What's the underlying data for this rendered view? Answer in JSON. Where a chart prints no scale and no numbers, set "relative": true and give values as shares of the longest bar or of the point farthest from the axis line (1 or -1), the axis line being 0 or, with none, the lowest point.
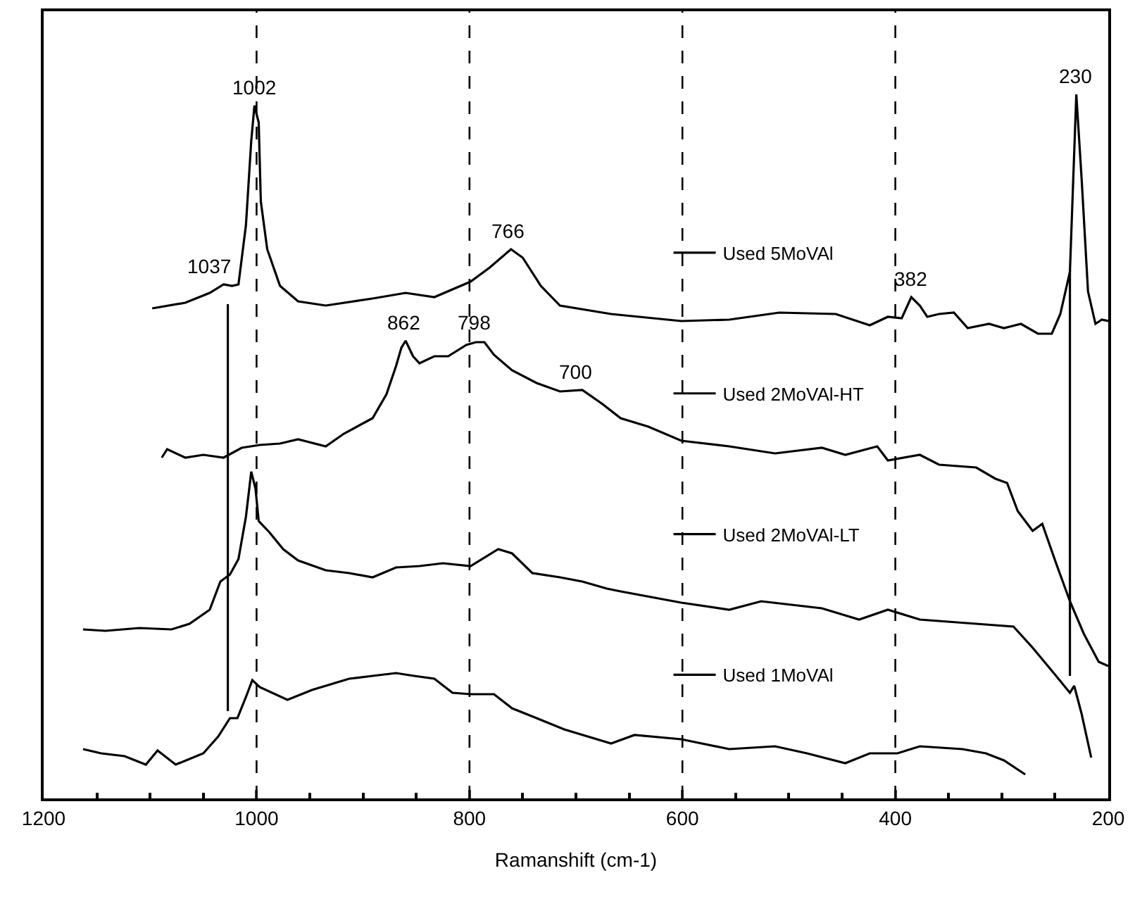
{
  "chart_data": {
    "type": "line",
    "relative": true,
    "xlabel": "Ramanshift (cm-1)",
    "xlim": [
      1200,
      200
    ],
    "xticks": [
      1200,
      1000,
      800,
      600,
      400,
      200
    ],
    "grid": false,
    "legend": "right",
    "marker": "none",
    "line_style": "solid",
    "series": [
      {
        "name": "Used 5MoVAl",
        "color": "#000000",
        "x": [
          1098,
          1067,
          1044,
          1031,
          1023,
          1017,
          1010,
          1005,
          1002,
          998,
          996,
          990,
          978,
          961,
          935,
          891,
          860,
          833,
          799,
          781,
          761,
          750,
          733,
          715,
          667,
          601,
          556,
          509,
          456,
          424,
          407,
          394,
          385,
          377,
          370,
          359,
          345,
          332,
          312,
          298,
          282,
          266,
          253,
          245,
          236,
          230,
          225,
          219,
          212,
          206,
          200
        ],
        "values": [
          0.696,
          0.704,
          0.718,
          0.73,
          0.728,
          0.73,
          0.814,
          0.934,
          0.984,
          0.96,
          0.848,
          0.78,
          0.728,
          0.706,
          0.7,
          0.71,
          0.718,
          0.712,
          0.734,
          0.754,
          0.78,
          0.768,
          0.728,
          0.7,
          0.688,
          0.678,
          0.68,
          0.69,
          0.688,
          0.672,
          0.684,
          0.682,
          0.712,
          0.7,
          0.684,
          0.688,
          0.69,
          0.668,
          0.674,
          0.668,
          0.674,
          0.66,
          0.66,
          0.688,
          0.748,
          1.0,
          0.88,
          0.72,
          0.674,
          0.68,
          0.678
        ]
      },
      {
        "name": "Used 2MoVAl-HT",
        "color": "#000000",
        "x": [
          1089,
          1084,
          1067,
          1050,
          1031,
          1014,
          997,
          978,
          961,
          935,
          918,
          891,
          878,
          869,
          864,
          860,
          853,
          847,
          833,
          820,
          803,
          794,
          786,
          777,
          760,
          737,
          715,
          694,
          675,
          658,
          632,
          601,
          556,
          513,
          469,
          447,
          417,
          407,
          377,
          359,
          324,
          306,
          295,
          285,
          271,
          262,
          249,
          236,
          223,
          209,
          200
        ],
        "values": [
          0.484,
          0.496,
          0.484,
          0.488,
          0.484,
          0.498,
          0.502,
          0.504,
          0.51,
          0.5,
          0.518,
          0.54,
          0.574,
          0.614,
          0.64,
          0.65,
          0.628,
          0.618,
          0.628,
          0.628,
          0.644,
          0.648,
          0.648,
          0.63,
          0.608,
          0.59,
          0.578,
          0.58,
          0.56,
          0.54,
          0.528,
          0.508,
          0.5,
          0.49,
          0.498,
          0.488,
          0.5,
          0.48,
          0.488,
          0.474,
          0.47,
          0.454,
          0.448,
          0.408,
          0.38,
          0.39,
          0.334,
          0.28,
          0.234,
          0.194,
          0.188
        ]
      },
      {
        "name": "Used 2MoVAl-LT",
        "color": "#000000",
        "x": [
          1163,
          1142,
          1110,
          1080,
          1063,
          1044,
          1034,
          1025,
          1017,
          1010,
          1005,
          1001,
          998,
          988,
          975,
          961,
          935,
          913,
          891,
          869,
          847,
          825,
          799,
          773,
          760,
          741,
          715,
          694,
          671,
          658,
          601,
          556,
          526,
          469,
          434,
          407,
          377,
          324,
          289,
          271,
          249,
          236,
          232,
          225,
          216
        ],
        "values": [
          0.24,
          0.238,
          0.242,
          0.24,
          0.248,
          0.268,
          0.308,
          0.318,
          0.34,
          0.4,
          0.464,
          0.44,
          0.394,
          0.378,
          0.354,
          0.338,
          0.324,
          0.32,
          0.314,
          0.328,
          0.33,
          0.334,
          0.33,
          0.354,
          0.348,
          0.32,
          0.314,
          0.308,
          0.298,
          0.294,
          0.278,
          0.268,
          0.28,
          0.27,
          0.254,
          0.268,
          0.254,
          0.248,
          0.244,
          0.214,
          0.174,
          0.15,
          0.16,
          0.12,
          0.058
        ]
      },
      {
        "name": "Used 1MoVAl",
        "color": "#000000",
        "x": [
          1163,
          1146,
          1124,
          1104,
          1093,
          1076,
          1050,
          1036,
          1025,
          1018,
          1010,
          1004,
          997,
          971,
          948,
          913,
          891,
          869,
          852,
          833,
          816,
          799,
          777,
          760,
          737,
          711,
          667,
          645,
          601,
          556,
          513,
          483,
          447,
          424,
          398,
          377,
          337,
          315,
          298,
          278
        ],
        "values": [
          0.07,
          0.064,
          0.06,
          0.048,
          0.068,
          0.048,
          0.064,
          0.088,
          0.114,
          0.114,
          0.144,
          0.168,
          0.158,
          0.14,
          0.154,
          0.17,
          0.174,
          0.178,
          0.174,
          0.17,
          0.15,
          0.148,
          0.148,
          0.128,
          0.114,
          0.098,
          0.078,
          0.09,
          0.084,
          0.07,
          0.074,
          0.064,
          0.05,
          0.064,
          0.064,
          0.074,
          0.07,
          0.064,
          0.054,
          0.034
        ]
      },
      {
        "color": "#000000",
        "x": [
          1027,
          1027
        ],
        "values": [
          0.702,
          0.124
        ]
      },
      {
        "color": "#000000",
        "x": [
          236,
          236
        ],
        "values": [
          0.75,
          0.174
        ]
      }
    ],
    "ref_lines": [
      {
        "axis": "x",
        "value": 1000,
        "color": "#000000",
        "line_style": "dashed"
      },
      {
        "axis": "x",
        "value": 800,
        "color": "#000000",
        "line_style": "dashed"
      },
      {
        "axis": "x",
        "value": 600,
        "color": "#000000",
        "line_style": "dashed"
      },
      {
        "axis": "x",
        "value": 400,
        "color": "#000000",
        "line_style": "dashed"
      }
    ],
    "annotations": [
      {
        "text": "1002",
        "x": 1002,
        "y": 0.984
      },
      {
        "text": "1037",
        "x": 1045,
        "y": 0.73
      },
      {
        "text": "766",
        "x": 763,
        "y": 0.78
      },
      {
        "text": "862",
        "x": 862,
        "y": 0.65
      },
      {
        "text": "798",
        "x": 795,
        "y": 0.65
      },
      {
        "text": "700",
        "x": 700,
        "y": 0.58
      },
      {
        "text": "382",
        "x": 385,
        "y": 0.712
      },
      {
        "text": "230",
        "x": 230,
        "y": 1.0
      }
    ]
  }
}
